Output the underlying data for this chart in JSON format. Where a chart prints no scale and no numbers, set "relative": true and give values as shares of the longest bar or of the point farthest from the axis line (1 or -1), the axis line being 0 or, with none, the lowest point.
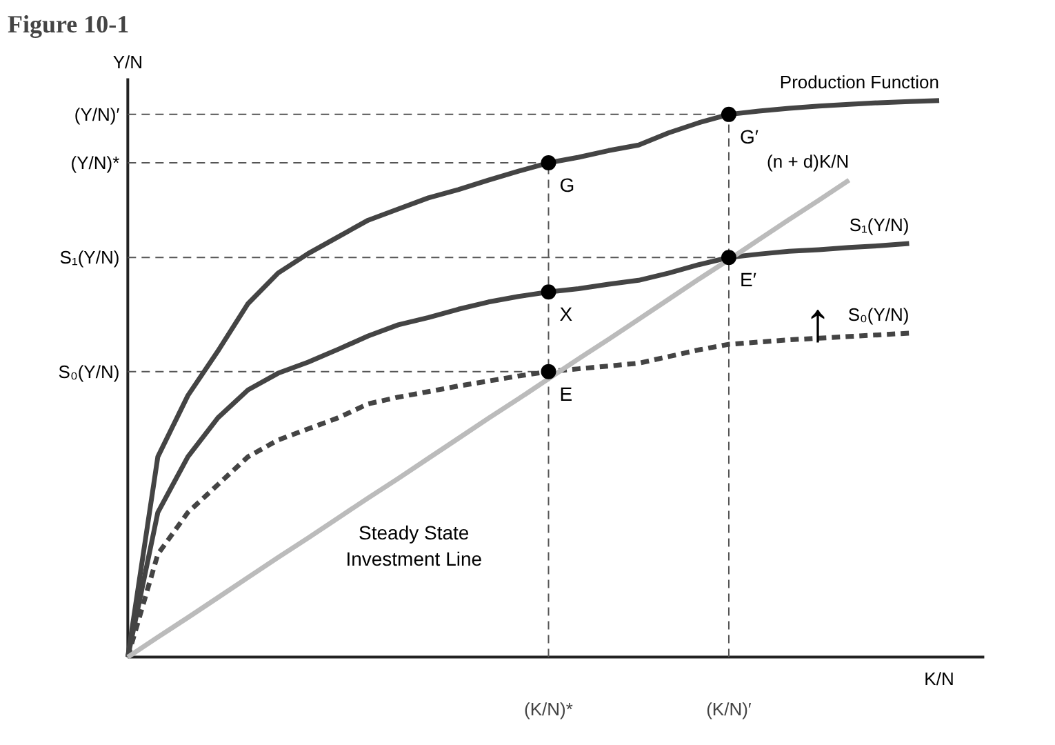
{
  "chart_data": {
    "type": "line",
    "title": "Figure 10-1",
    "xlabel": "K/N",
    "ylabel": "Y/N",
    "relative": true,
    "tick_labels": "x",
    "grid": false,
    "categories": [
      null,
      null,
      null,
      null,
      null,
      null,
      null,
      null,
      null,
      null,
      null,
      null,
      null,
      null,
      "(K/N)*",
      null,
      null,
      null,
      null,
      null,
      "(K/N)′",
      null,
      null,
      null,
      null,
      null,
      null,
      null,
      null
    ],
    "series": [
      {
        "name": "Production Function",
        "color": "#444444",
        "values": [
          0,
          0.36,
          0.47,
          0.55,
          0.635,
          0.69,
          0.725,
          0.755,
          0.785,
          0.805,
          0.825,
          0.84,
          0.857,
          0.873,
          0.888,
          0.898,
          0.91,
          0.92,
          0.942,
          0.96,
          0.975,
          0.981,
          0.986,
          0.99,
          0.993,
          0.996,
          0.998,
          1.0,
          null
        ]
      },
      {
        "name": "S₁(Y/N)",
        "color": "#444444",
        "values": [
          0,
          0.26,
          0.36,
          0.43,
          0.48,
          0.51,
          0.53,
          0.553,
          0.577,
          0.597,
          0.61,
          0.625,
          0.638,
          0.648,
          0.656,
          0.662,
          0.67,
          0.677,
          0.69,
          0.705,
          0.718,
          0.724,
          0.729,
          0.732,
          0.736,
          0.739,
          0.743,
          null,
          null
        ]
      },
      {
        "name": "S₀(Y/N)",
        "color": "#444444",
        "line_style": "dashed",
        "values": [
          0,
          0.185,
          0.26,
          0.31,
          0.36,
          0.39,
          0.41,
          0.43,
          0.455,
          0.467,
          0.477,
          0.487,
          0.496,
          0.505,
          0.513,
          0.518,
          0.523,
          0.528,
          0.54,
          0.552,
          0.562,
          0.566,
          0.57,
          0.573,
          0.576,
          0.579,
          0.582,
          null,
          null
        ]
      },
      {
        "name": "(n + d)K/N",
        "color": "#bbbbbb",
        "values": [
          0,
          0.036,
          0.071,
          0.107,
          0.143,
          0.179,
          0.214,
          0.25,
          0.286,
          0.321,
          0.357,
          0.393,
          0.429,
          0.464,
          0.5,
          0.536,
          0.571,
          0.607,
          0.643,
          0.679,
          0.714,
          0.75,
          0.786,
          0.821,
          0.857,
          null,
          null,
          null,
          null
        ]
      },
      {
        "type": "scatter",
        "marker": "circle",
        "color": "#000000",
        "x": [
          "(K/N)*",
          "(K/N)′",
          "(K/N)*",
          "(K/N)*",
          "(K/N)′"
        ],
        "values": [
          0.888,
          0.975,
          0.656,
          0.513,
          0.718
        ]
      }
    ],
    "ref_lines": [
      {
        "axis": "y",
        "value": 0.975,
        "label": "(Y/N)′",
        "line_style": "dashed"
      },
      {
        "axis": "y",
        "value": 0.888,
        "label": "(Y/N)*",
        "line_style": "dashed"
      },
      {
        "axis": "y",
        "value": 0.718,
        "label": "S₁(Y/N)",
        "line_style": "dashed"
      },
      {
        "axis": "y",
        "value": 0.513,
        "label": "S₀(Y/N)",
        "line_style": "dashed"
      },
      {
        "axis": "x",
        "value": "(K/N)*",
        "line_style": "dashed"
      },
      {
        "axis": "x",
        "value": "(K/N)′",
        "line_style": "dashed"
      }
    ],
    "annotations": [
      {
        "text": "G",
        "x": "(K/N)*",
        "y": 0.888
      },
      {
        "text": "G′",
        "x": "(K/N)′",
        "y": 0.975
      },
      {
        "text": "X",
        "x": "(K/N)*",
        "y": 0.656
      },
      {
        "text": "E",
        "x": "(K/N)*",
        "y": 0.513
      },
      {
        "text": "E′",
        "x": "(K/N)′",
        "y": 0.718
      },
      "↑",
      "Steady State\nInvestment Line"
    ]
  }
}
